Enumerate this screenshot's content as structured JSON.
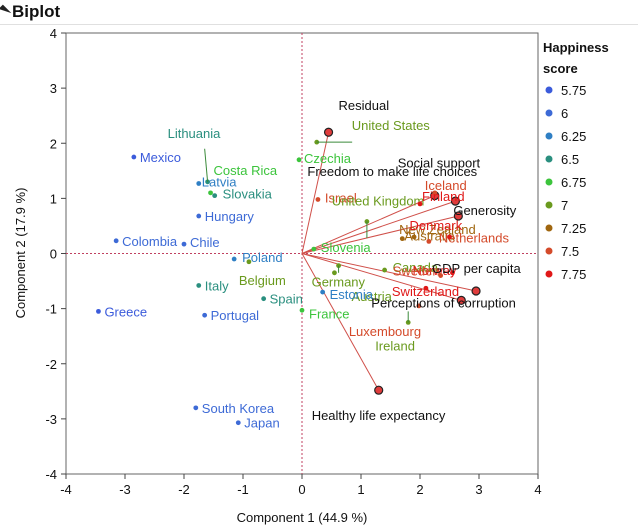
{
  "window": {
    "title": "Biplot"
  },
  "chart_data": {
    "type": "scatter",
    "subtype": "biplot",
    "title": "Biplot",
    "xlabel": "Component 1  (44.9 %)",
    "ylabel": "Component 2  (17.9 %)",
    "xlim": [
      -4,
      4
    ],
    "ylim": [
      -4,
      4
    ],
    "xticks": [
      -4,
      -3,
      -2,
      -1,
      0,
      1,
      2,
      3,
      4
    ],
    "yticks": [
      -4,
      -3,
      -2,
      -1,
      0,
      1,
      2,
      3,
      4
    ],
    "reference_lines": {
      "x": 0,
      "y": 0,
      "style": "dotted",
      "color": "#c04060"
    },
    "legend": {
      "title": "Happiness score",
      "items": [
        {
          "label": "5.75",
          "color": "#3b5bdb"
        },
        {
          "label": "6",
          "color": "#3d6ad6"
        },
        {
          "label": "6.25",
          "color": "#2f7fc4"
        },
        {
          "label": "6.5",
          "color": "#2a8f7f"
        },
        {
          "label": "6.75",
          "color": "#3cc43c"
        },
        {
          "label": "7",
          "color": "#6a9a1e"
        },
        {
          "label": "7.25",
          "color": "#a0660f"
        },
        {
          "label": "7.5",
          "color": "#d44a2a"
        },
        {
          "label": "7.75",
          "color": "#e01818"
        }
      ]
    },
    "points": [
      {
        "label": "Mexico",
        "x": -2.85,
        "y": 1.75,
        "color": "#3b5bdb"
      },
      {
        "label": "Lithuania",
        "x": -1.6,
        "y": 1.3,
        "color": "#2a8f7f"
      },
      {
        "label": "Costa Rica",
        "x": -1.55,
        "y": 1.1,
        "color": "#3cc43c"
      },
      {
        "label": "Latvia",
        "x": -1.75,
        "y": 1.27,
        "color": "#2f7fc4"
      },
      {
        "label": "Slovakia",
        "x": -1.48,
        "y": 1.05,
        "color": "#2a8f7f"
      },
      {
        "label": "Hungary",
        "x": -1.75,
        "y": 0.68,
        "color": "#3d6ad6"
      },
      {
        "label": "Colombia",
        "x": -3.15,
        "y": 0.23,
        "color": "#3d6ad6"
      },
      {
        "label": "Chile",
        "x": -2.0,
        "y": 0.17,
        "color": "#3d6ad6"
      },
      {
        "label": "Poland",
        "x": -1.15,
        "y": -0.1,
        "color": "#2f7fc4"
      },
      {
        "label": "Belgium",
        "x": -0.9,
        "y": -0.15,
        "color": "#6a9a1e"
      },
      {
        "label": "Italy",
        "x": -1.75,
        "y": -0.58,
        "color": "#2a8f7f"
      },
      {
        "label": "Spain",
        "x": -0.65,
        "y": -0.82,
        "color": "#2a8f7f"
      },
      {
        "label": "Greece",
        "x": -3.45,
        "y": -1.05,
        "color": "#3b5bdb"
      },
      {
        "label": "Portugal",
        "x": -1.65,
        "y": -1.12,
        "color": "#3d6ad6"
      },
      {
        "label": "South Korea",
        "x": -1.8,
        "y": -2.8,
        "color": "#3d6ad6"
      },
      {
        "label": "Japan",
        "x": -1.08,
        "y": -3.07,
        "color": "#3d6ad6"
      },
      {
        "label": "United States",
        "x": 0.25,
        "y": 2.02,
        "color": "#6a9a1e"
      },
      {
        "label": "Czechia",
        "x": -0.05,
        "y": 1.7,
        "color": "#3cc43c"
      },
      {
        "label": "Israel",
        "x": 0.27,
        "y": 0.98,
        "color": "#d44a2a"
      },
      {
        "label": "United Kingdom",
        "x": 1.1,
        "y": 0.58,
        "color": "#6a9a1e"
      },
      {
        "label": "Slovenia",
        "x": 0.2,
        "y": 0.08,
        "color": "#3cc43c"
      },
      {
        "label": "Germany",
        "x": 0.62,
        "y": -0.22,
        "color": "#6a9a1e"
      },
      {
        "label": "Austria",
        "x": 0.55,
        "y": -0.35,
        "color": "#6a9a1e"
      },
      {
        "label": "Estonia",
        "x": 0.35,
        "y": -0.7,
        "color": "#2f7fc4"
      },
      {
        "label": "France",
        "x": 0.0,
        "y": -1.03,
        "color": "#3cc43c"
      },
      {
        "label": "Canada",
        "x": 1.4,
        "y": -0.3,
        "color": "#6a9a1e"
      },
      {
        "label": "Australia",
        "x": 1.7,
        "y": 0.27,
        "color": "#a0660f"
      },
      {
        "label": "New Zealand",
        "x": 1.9,
        "y": 0.3,
        "color": "#a0660f"
      },
      {
        "label": "Netherlands",
        "x": 2.15,
        "y": 0.22,
        "color": "#d44a2a"
      },
      {
        "label": "Denmark",
        "x": 2.5,
        "y": 0.3,
        "color": "#e01818"
      },
      {
        "label": "Iceland",
        "x": 2.25,
        "y": 1.1,
        "color": "#d44a2a"
      },
      {
        "label": "Finland",
        "x": 2.0,
        "y": 0.9,
        "color": "#e01818"
      },
      {
        "label": "Norway",
        "x": 2.55,
        "y": -0.35,
        "color": "#e01818"
      },
      {
        "label": "Sweden",
        "x": 2.35,
        "y": -0.4,
        "color": "#d44a2a"
      },
      {
        "label": "Switzerland",
        "x": 2.1,
        "y": -0.63,
        "color": "#e01818"
      },
      {
        "label": "Luxembourg",
        "x": 1.98,
        "y": -0.95,
        "color": "#d44a2a"
      },
      {
        "label": "Ireland",
        "x": 1.8,
        "y": -1.25,
        "color": "#6a9a1e"
      }
    ],
    "loadings": [
      {
        "label": "Residual",
        "x": 0.45,
        "y": 2.2
      },
      {
        "label": "Social support",
        "x": 2.25,
        "y": 1.05
      },
      {
        "label": "Freedom to make life choices",
        "x": 2.6,
        "y": 0.95
      },
      {
        "label": "Generosity",
        "x": 2.65,
        "y": 0.68
      },
      {
        "label": "GDP per capita",
        "x": 2.95,
        "y": -0.68
      },
      {
        "label": "Perceptions of corruption",
        "x": 2.7,
        "y": -0.85
      },
      {
        "label": "Healthy life expectancy",
        "x": 1.3,
        "y": -2.48
      }
    ]
  }
}
